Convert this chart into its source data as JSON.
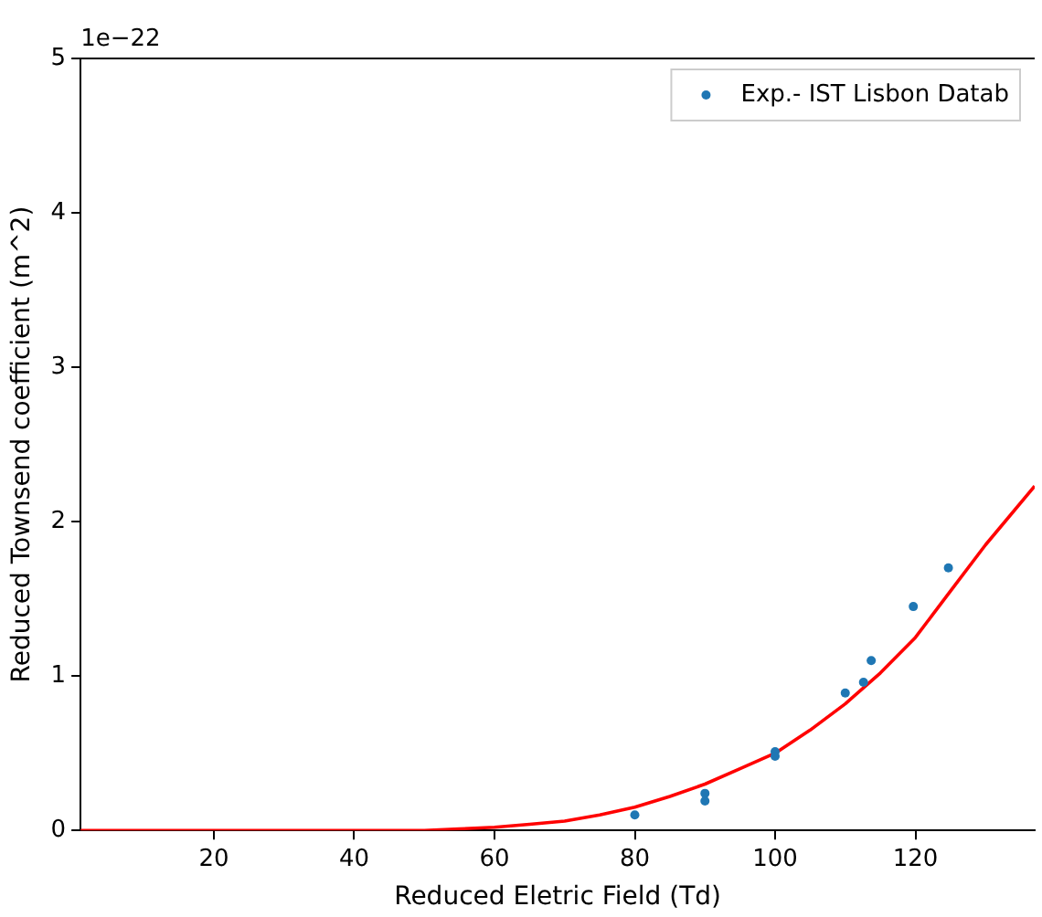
{
  "chart_data": {
    "type": "line",
    "xlabel": "Reduced Eletric Field (Td)",
    "ylabel": "Reduced Townsend coefficient (m^2)",
    "annotations": [
      "1e−22"
    ],
    "xlim": [
      1,
      137
    ],
    "xticks": [
      20,
      40,
      60,
      80,
      100,
      120
    ],
    "ylim": [
      0,
      5
    ],
    "yticks": [
      0,
      1,
      2,
      3,
      4,
      5
    ],
    "grid": false,
    "legend": "top right",
    "series": [
      {
        "type": "line",
        "color": "#ff0000",
        "marker": "none",
        "x": [
          1,
          10,
          20,
          30,
          40,
          50,
          55,
          60,
          65,
          70,
          75,
          80,
          85,
          90,
          95,
          100,
          105,
          110,
          115,
          120,
          125,
          130,
          137
        ],
        "values": [
          0,
          0,
          0,
          0,
          0,
          0,
          0.01,
          0.02,
          0.04,
          0.06,
          0.1,
          0.15,
          0.22,
          0.3,
          0.4,
          0.5,
          0.65,
          0.82,
          1.02,
          1.25,
          1.55,
          1.85,
          2.23
        ]
      },
      {
        "type": "scatter",
        "name": "Exp.- IST Lisbon Datab",
        "color": "#1f77b4",
        "marker": "circle",
        "x": [
          80,
          90,
          90,
          100,
          100,
          110,
          112.6,
          113.7,
          119.7,
          124.7
        ],
        "values": [
          0.1,
          0.24,
          0.19,
          0.51,
          0.48,
          0.89,
          0.96,
          1.1,
          1.45,
          1.7
        ]
      }
    ]
  }
}
